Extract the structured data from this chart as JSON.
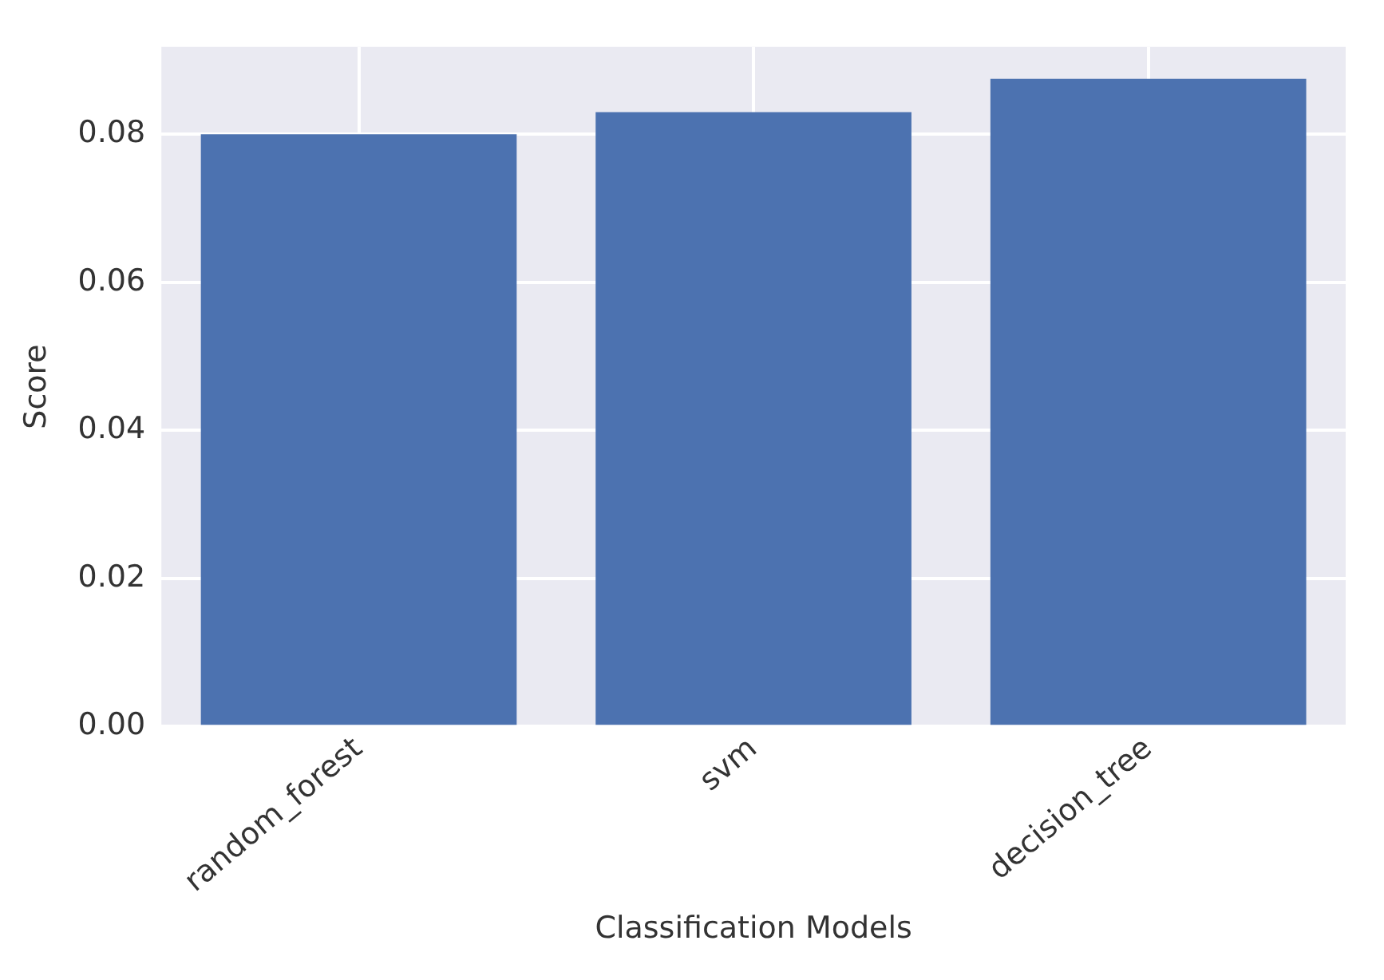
{
  "chart_data": {
    "type": "bar",
    "xlabel": "Classification Models",
    "ylabel": "Score",
    "categories": [
      "random_forest",
      "svm",
      "decision_tree"
    ],
    "values": [
      0.08,
      0.083,
      0.0875
    ],
    "color": "#4c72b0",
    "ylim": [
      0,
      0.0918
    ],
    "yticks": [
      {
        "value": 0,
        "label": "0.00"
      },
      {
        "value": 0.02,
        "label": "0.02"
      },
      {
        "value": 0.04,
        "label": "0.04"
      },
      {
        "value": 0.06,
        "label": "0.06"
      },
      {
        "value": 0.08,
        "label": "0.08"
      }
    ],
    "grid": true,
    "legend": false
  }
}
